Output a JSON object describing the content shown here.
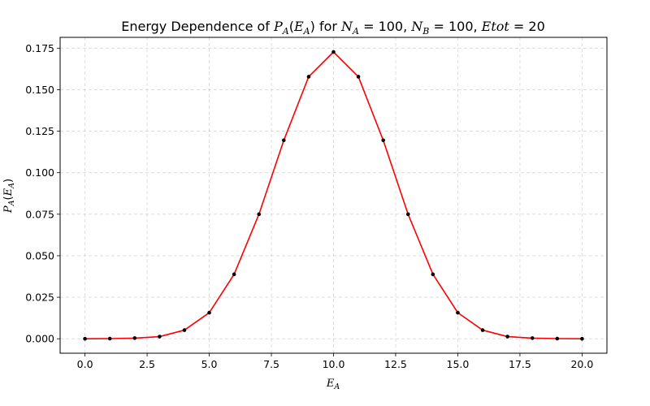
{
  "chart_data": {
    "type": "line",
    "title": "Energy Dependence of P_A(E_A) for N_A = 100, N_B = 100, Etot = 20",
    "title_parts": {
      "prefix": "Energy Dependence of ",
      "func": "P",
      "func_sub": "A",
      "func_arg": "E",
      "func_arg_sub": "A",
      "mid": " for ",
      "na_sym": "N",
      "na_sub": "A",
      "na_val": "100",
      "nb_sym": "N",
      "nb_sub": "B",
      "nb_val": "100",
      "etot_sym": "Etot",
      "etot_val": "20",
      "eq": " = ",
      "sep": ", "
    },
    "xlabel": "E_A",
    "xlabel_parts": {
      "sym": "E",
      "sub": "A"
    },
    "ylabel": "P_A(E_A)",
    "ylabel_parts": {
      "func": "P",
      "func_sub": "A",
      "arg": "E",
      "arg_sub": "A"
    },
    "xlim": [
      -1,
      21
    ],
    "ylim": [
      -0.0087,
      0.1815
    ],
    "xticks": [
      0.0,
      2.5,
      5.0,
      7.5,
      10.0,
      12.5,
      15.0,
      17.5,
      20.0
    ],
    "xtick_labels": [
      "0.0",
      "2.5",
      "5.0",
      "7.5",
      "10.0",
      "12.5",
      "15.0",
      "17.5",
      "20.0"
    ],
    "yticks": [
      0.0,
      0.025,
      0.05,
      0.075,
      0.1,
      0.125,
      0.15,
      0.175
    ],
    "ytick_labels": [
      "0.000",
      "0.025",
      "0.050",
      "0.075",
      "0.100",
      "0.125",
      "0.150",
      "0.175"
    ],
    "grid": true,
    "line_color": "#ff0000",
    "marker_color": "#000000",
    "x": [
      0,
      1,
      2,
      3,
      4,
      5,
      6,
      7,
      8,
      9,
      10,
      11,
      12,
      13,
      14,
      15,
      16,
      17,
      18,
      19,
      20
    ],
    "y": [
      0.0,
      0.0001,
      0.0004,
      0.0013,
      0.0052,
      0.0157,
      0.0388,
      0.075,
      0.1195,
      0.1578,
      0.1727,
      0.1578,
      0.1195,
      0.075,
      0.0388,
      0.0157,
      0.0052,
      0.0013,
      0.0004,
      0.0001,
      0.0
    ]
  }
}
